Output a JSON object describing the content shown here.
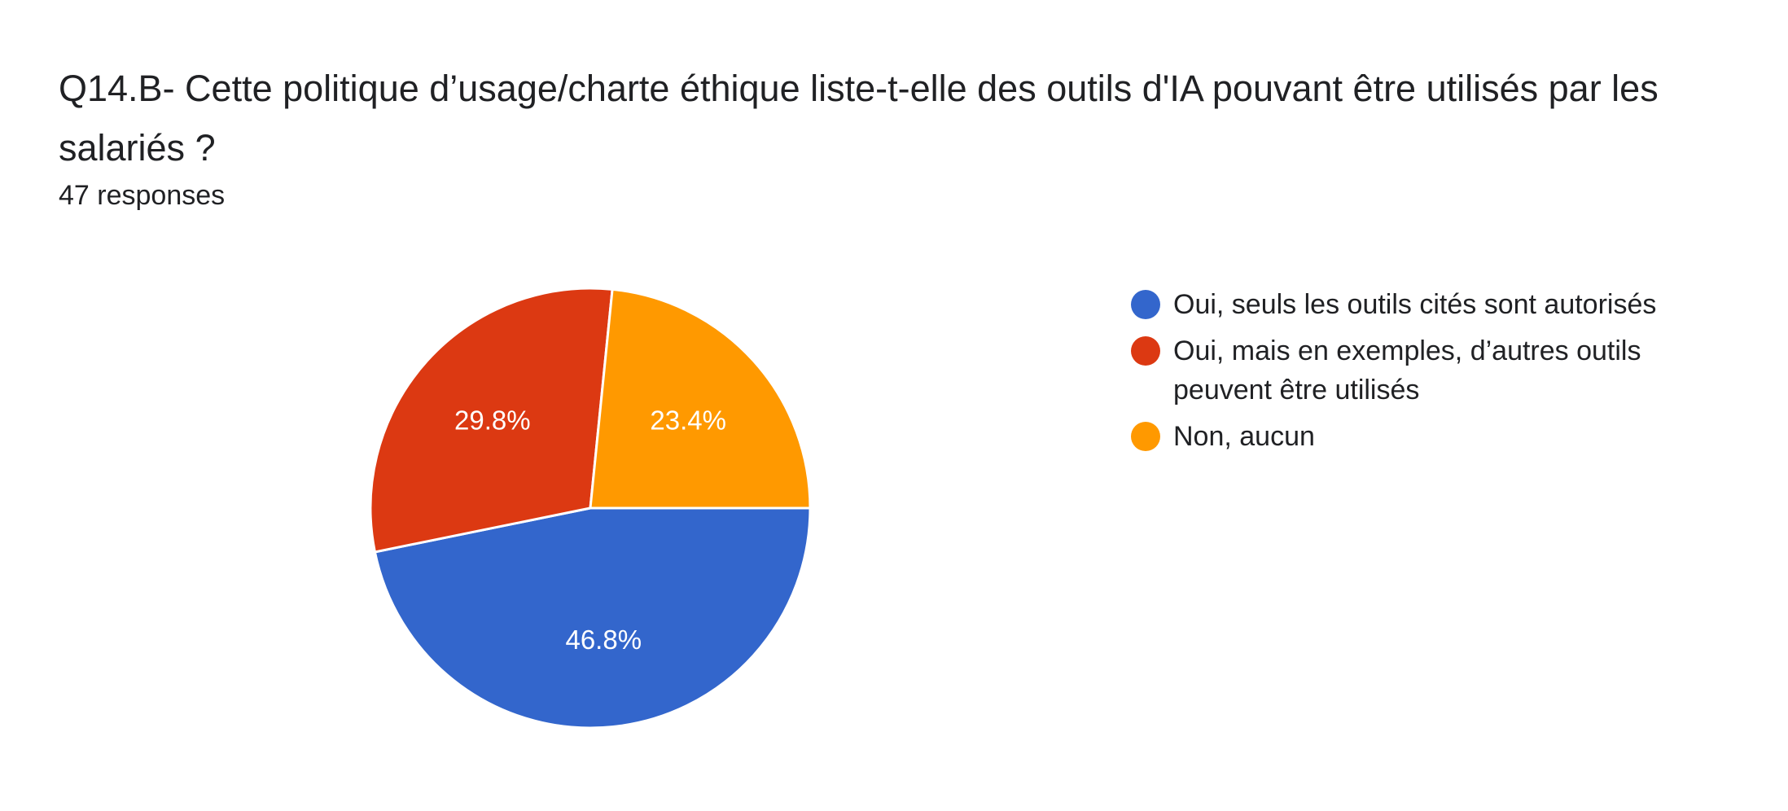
{
  "header": {
    "title": "Q14.B- Cette politique d’usage/charte éthique liste-t-elle des outils d'IA pouvant être utilisés par les salariés ?",
    "responses": "47 responses"
  },
  "chart_data": {
    "type": "pie",
    "title": "Q14.B- Cette politique d’usage/charte éthique liste-t-elle des outils d'IA pouvant être utilisés par les salariés ?",
    "total_responses": 47,
    "legend_position": "right",
    "slices": [
      {
        "label": "Oui, seuls les outils cités sont autorisés",
        "value": 46.8,
        "display": "46.8%",
        "color": "#3366cc"
      },
      {
        "label": "Oui, mais en exemples, d’autres outils peuvent être utilisés",
        "value": 29.8,
        "display": "29.8%",
        "color": "#dc3912"
      },
      {
        "label": "Non, aucun",
        "value": 23.4,
        "display": "23.4%",
        "color": "#ff9900"
      }
    ]
  }
}
